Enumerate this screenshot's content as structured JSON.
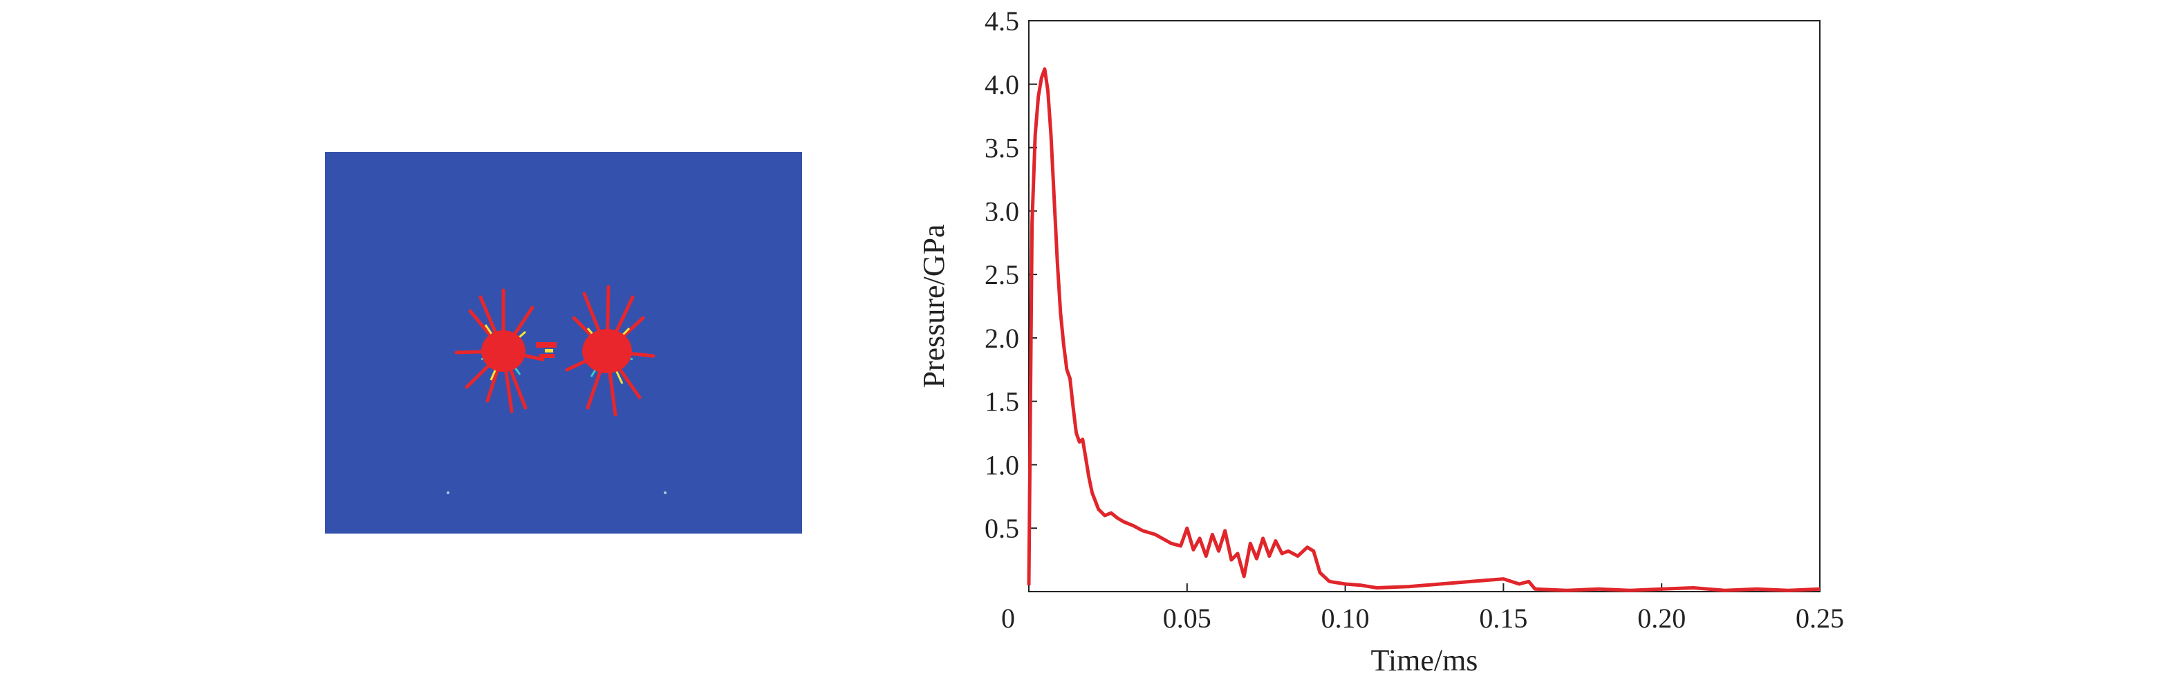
{
  "simulation_panel": {
    "background_color": "#3452ad",
    "blast_color": "#e8262b",
    "fringe_colors": [
      "#f2e43a",
      "#3fc7c2",
      "#6fd06a"
    ]
  },
  "chart_data": {
    "type": "line",
    "xlabel": "Time/ms",
    "ylabel": "Pressure/GPa",
    "xlim": [
      0,
      0.25
    ],
    "ylim": [
      0,
      4.5
    ],
    "x_ticks": [
      0,
      0.05,
      0.1,
      0.15,
      0.2,
      0.25
    ],
    "x_tick_labels": [
      "0",
      "0.05",
      "0.10",
      "0.15",
      "0.20",
      "0.25"
    ],
    "y_ticks": [
      0.5,
      1.0,
      1.5,
      2.0,
      2.5,
      3.0,
      3.5,
      4.0,
      4.5
    ],
    "y_tick_labels": [
      "0.5",
      "1.0",
      "1.5",
      "2.0",
      "2.5",
      "3.0",
      "3.5",
      "4.0",
      "4.5"
    ],
    "grid": false,
    "series": [
      {
        "color": "#e0262b",
        "x": [
          0,
          0.001,
          0.002,
          0.003,
          0.004,
          0.005,
          0.006,
          0.007,
          0.008,
          0.009,
          0.01,
          0.011,
          0.012,
          0.013,
          0.014,
          0.015,
          0.016,
          0.017,
          0.018,
          0.019,
          0.02,
          0.022,
          0.024,
          0.026,
          0.028,
          0.03,
          0.033,
          0.036,
          0.04,
          0.045,
          0.048,
          0.05,
          0.052,
          0.054,
          0.056,
          0.058,
          0.06,
          0.062,
          0.064,
          0.066,
          0.068,
          0.07,
          0.072,
          0.074,
          0.076,
          0.078,
          0.08,
          0.082,
          0.085,
          0.088,
          0.09,
          0.092,
          0.095,
          0.1,
          0.105,
          0.11,
          0.12,
          0.13,
          0.14,
          0.15,
          0.155,
          0.158,
          0.16,
          0.17,
          0.18,
          0.19,
          0.2,
          0.21,
          0.22,
          0.23,
          0.24,
          0.25
        ],
        "y": [
          0.05,
          2.9,
          3.6,
          3.9,
          4.05,
          4.12,
          3.95,
          3.6,
          3.1,
          2.6,
          2.2,
          1.95,
          1.75,
          1.68,
          1.45,
          1.25,
          1.18,
          1.2,
          1.05,
          0.9,
          0.78,
          0.65,
          0.6,
          0.62,
          0.58,
          0.55,
          0.52,
          0.48,
          0.45,
          0.38,
          0.36,
          0.5,
          0.33,
          0.42,
          0.28,
          0.45,
          0.32,
          0.48,
          0.25,
          0.3,
          0.12,
          0.38,
          0.26,
          0.42,
          0.28,
          0.4,
          0.3,
          0.32,
          0.28,
          0.35,
          0.32,
          0.15,
          0.08,
          0.06,
          0.05,
          0.03,
          0.04,
          0.06,
          0.08,
          0.1,
          0.06,
          0.08,
          0.02,
          0.01,
          0.02,
          0.01,
          0.02,
          0.03,
          0.01,
          0.02,
          0.01,
          0.02
        ]
      }
    ]
  }
}
